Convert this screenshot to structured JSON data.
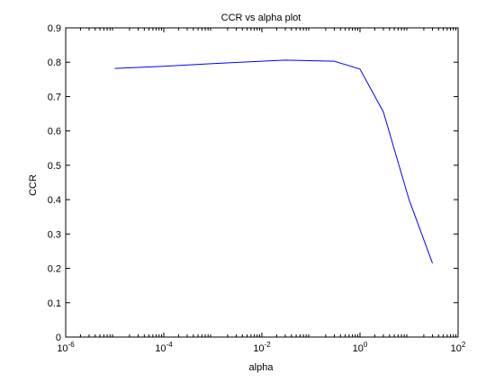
{
  "chart_data": {
    "type": "line",
    "title": "CCR vs alpha plot",
    "xlabel": "alpha",
    "ylabel": "CCR",
    "x_scale": "log",
    "xlim": [
      1e-06,
      100
    ],
    "ylim": [
      0,
      0.9
    ],
    "x_ticks": [
      {
        "value": 1e-06,
        "base": "10",
        "exp": "-6"
      },
      {
        "value": 0.0001,
        "base": "10",
        "exp": "-4"
      },
      {
        "value": 0.01,
        "base": "10",
        "exp": "-2"
      },
      {
        "value": 1,
        "base": "10",
        "exp": "0"
      },
      {
        "value": 100,
        "base": "10",
        "exp": "2"
      }
    ],
    "y_ticks": [
      "0",
      "0.1",
      "0.2",
      "0.3",
      "0.4",
      "0.5",
      "0.6",
      "0.7",
      "0.8",
      "0.9"
    ],
    "grid": false,
    "series": [
      {
        "color": "#0000ff",
        "x": [
          1e-05,
          0.0001,
          0.001,
          0.01,
          0.03,
          0.3,
          1,
          3,
          10,
          30
        ],
        "y": [
          0.782,
          0.788,
          0.796,
          0.803,
          0.806,
          0.803,
          0.78,
          0.655,
          0.4,
          0.215
        ]
      }
    ]
  }
}
